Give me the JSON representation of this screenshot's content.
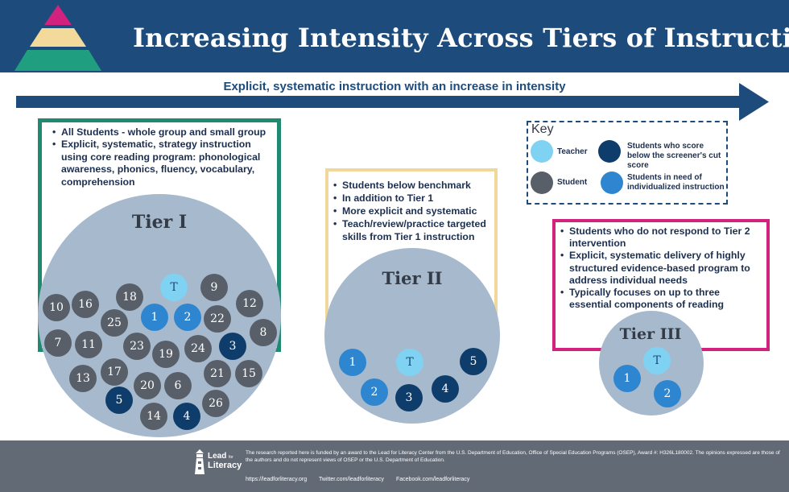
{
  "title": "Increasing Intensity Across Tiers of Instruction",
  "arrow_label": "Explicit, systematic instruction with an increase in intensity",
  "tiers": [
    {
      "label": "Tier I",
      "bullets": [
        "All Students - whole group and small group",
        "Explicit, systematic, strategy instruction using core reading program: phonological awareness, phonics, fluency, vocabulary, comprehension"
      ],
      "dots": [
        {
          "label": "T",
          "kind": "teacher"
        },
        {
          "label": "9",
          "kind": "student"
        },
        {
          "label": "18",
          "kind": "student"
        },
        {
          "label": "10",
          "kind": "student"
        },
        {
          "label": "16",
          "kind": "student"
        },
        {
          "label": "1",
          "kind": "indiv"
        },
        {
          "label": "2",
          "kind": "indiv"
        },
        {
          "label": "22",
          "kind": "student"
        },
        {
          "label": "12",
          "kind": "student"
        },
        {
          "label": "25",
          "kind": "student"
        },
        {
          "label": "8",
          "kind": "student"
        },
        {
          "label": "7",
          "kind": "student"
        },
        {
          "label": "11",
          "kind": "student"
        },
        {
          "label": "23",
          "kind": "student"
        },
        {
          "label": "19",
          "kind": "student"
        },
        {
          "label": "24",
          "kind": "student"
        },
        {
          "label": "3",
          "kind": "below"
        },
        {
          "label": "17",
          "kind": "student"
        },
        {
          "label": "13",
          "kind": "student"
        },
        {
          "label": "21",
          "kind": "student"
        },
        {
          "label": "15",
          "kind": "student"
        },
        {
          "label": "20",
          "kind": "student"
        },
        {
          "label": "6",
          "kind": "student"
        },
        {
          "label": "5",
          "kind": "below"
        },
        {
          "label": "26",
          "kind": "student"
        },
        {
          "label": "14",
          "kind": "student"
        },
        {
          "label": "4",
          "kind": "below"
        }
      ]
    },
    {
      "label": "Tier II",
      "bullets": [
        "Students below benchmark",
        "In addition to Tier 1",
        "More explicit and systematic",
        "Teach/review/practice targeted skills from Tier 1 instruction"
      ],
      "dots": [
        {
          "label": "1",
          "kind": "indiv"
        },
        {
          "label": "T",
          "kind": "teacher"
        },
        {
          "label": "5",
          "kind": "below"
        },
        {
          "label": "2",
          "kind": "indiv"
        },
        {
          "label": "4",
          "kind": "below"
        },
        {
          "label": "3",
          "kind": "below"
        }
      ]
    },
    {
      "label": "Tier III",
      "bullets": [
        "Students who do not respond to Tier 2 intervention",
        "Explicit, systematic delivery of highly structured evidence-based program to address individual needs",
        "Typically focuses on up to three essential components of reading"
      ],
      "dots": [
        {
          "label": "T",
          "kind": "teacher"
        },
        {
          "label": "1",
          "kind": "indiv"
        },
        {
          "label": "2",
          "kind": "indiv"
        }
      ]
    }
  ],
  "key": {
    "title": "Key",
    "items": [
      {
        "label": "Teacher",
        "kind": "teacher"
      },
      {
        "label": "Students who score below the screener's cut score",
        "kind": "below"
      },
      {
        "label": "Student",
        "kind": "student"
      },
      {
        "label": "Students in need of individualized instruction",
        "kind": "indiv"
      }
    ]
  },
  "colors": {
    "navy": "#1d4b7c",
    "tier1_border": "#1f8a6f",
    "tier2_border": "#f0d89a",
    "tier3_border": "#d2227d",
    "circle_fill": "#a7b9cd",
    "student": "#585f69",
    "teacher": "#7fd2f2",
    "below": "#0f3d6b",
    "indiv": "#2e86d0",
    "footer": "#626a76",
    "pyramid_top": "#d2227d",
    "pyramid_mid": "#f3d99a",
    "pyramid_bottom": "#1f9f80"
  },
  "footer": {
    "logo_lead": "Lead",
    "logo_for": "for",
    "logo_literacy": "Literacy",
    "text": "The research reported here is funded by an award to the Lead for Literacy Center from the U.S. Department of Education, Office of Special Education Programs (OSEP), Award #: H326L180002. The opinions expressed are those of the authors and do not represent views of OSEP or the U.S. Department of Education.",
    "links": [
      "https://leadforliteracy.org",
      "Twitter.com/leadforliteracy",
      "Facebook.com/leadforliteracy"
    ]
  }
}
